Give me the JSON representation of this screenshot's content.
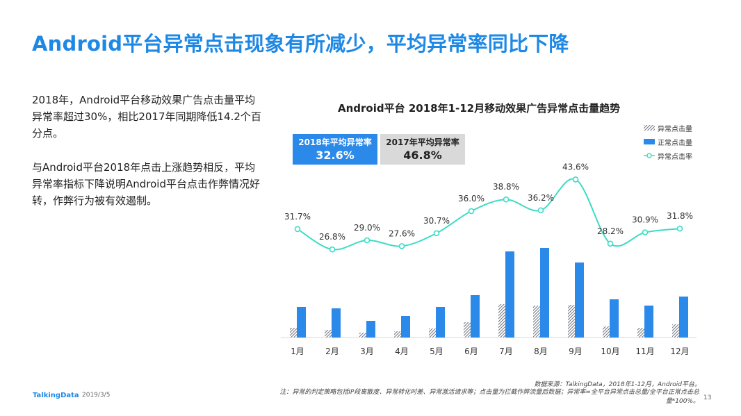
{
  "page": {
    "title": "Android平台异常点击现象有所减少，平均异常率同比下降",
    "paragraph1": "2018年，Android平台移动效果广告点击量平均异常率超过30%，相比2017年同期降低14.2个百分点。",
    "paragraph2": "与Android平台2018年点击上涨趋势相反，平均异常率指标下降说明Android平台点击作弊情况好转，作弊行为被有效遏制。",
    "brand": "TalkingData",
    "date": "2019/3/5",
    "source": "数据来源：TalkingData，2018年1-12月，Android平台。",
    "note": "注：异常的判定策略包括IP段离散度、异常转化时差、异常激活请求等；点击量为拦截作弊流量后数据；异常率=全平台异常点击总量/全平台正常点击总量*100%。",
    "page_number": "13"
  },
  "summary": {
    "avg2018_label": "2018年平均异常率",
    "avg2018_value": "32.6%",
    "avg2017_label": "2017年平均异常率",
    "avg2017_value": "46.8%"
  },
  "colors": {
    "accent": "#1e88e5",
    "bar_normal": "#2b89ea",
    "bar_abnormal": "#8a8e98",
    "line": "#3ddbc6",
    "box_2017": "#d9d9d9"
  },
  "chart_data": {
    "type": "bar",
    "title": "Android平台  2018年1-12月移动效果广告异常点击量趋势",
    "categories": [
      "1月",
      "2月",
      "3月",
      "4月",
      "5月",
      "6月",
      "7月",
      "8月",
      "9月",
      "10月",
      "11月",
      "12月"
    ],
    "series": [
      {
        "name": "异常点击量",
        "type": "bar",
        "values": [
          14,
          11,
          7,
          9,
          13,
          22,
          48,
          46,
          47,
          16,
          14,
          19
        ]
      },
      {
        "name": "正常点击量",
        "type": "bar",
        "values": [
          44,
          42,
          24,
          31,
          44,
          61,
          124,
          129,
          108,
          55,
          46,
          59
        ]
      },
      {
        "name": "异常点击率",
        "type": "line",
        "values": [
          31.7,
          26.8,
          29.0,
          27.6,
          30.7,
          36.0,
          38.8,
          36.2,
          43.6,
          28.2,
          30.9,
          31.8
        ],
        "labels": [
          "31.7%",
          "26.8%",
          "29.0%",
          "27.6%",
          "30.7%",
          "36.0%",
          "38.8%",
          "36.2%",
          "43.6%",
          "28.2%",
          "30.9%",
          "31.8%"
        ]
      }
    ],
    "bar_ylim": [
      0,
      150
    ],
    "line_ylim": [
      0,
      50
    ],
    "grid": false,
    "legend_position": "top-right"
  }
}
